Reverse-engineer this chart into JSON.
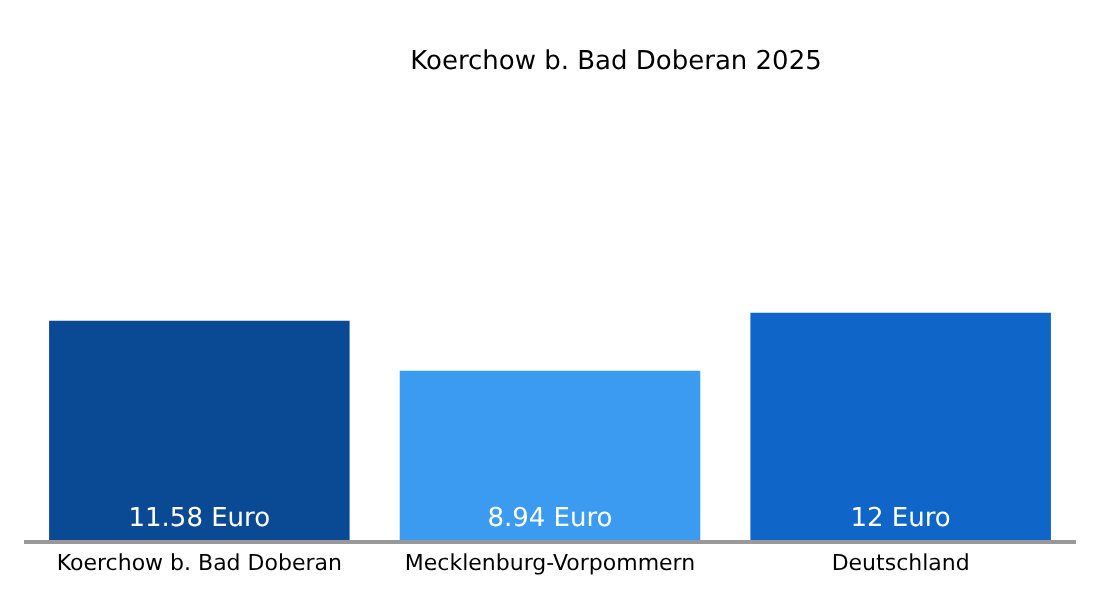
{
  "chart_data": {
    "type": "bar",
    "title": "Koerchow b. Bad Doberan 2025",
    "categories": [
      "Koerchow b. Bad Doberan",
      "Mecklenburg-Vorpommern",
      "Deutschland"
    ],
    "values": [
      11.58,
      8.94,
      12
    ],
    "colors": [
      "#0a4a94",
      "#3a9bf0",
      "#0f66c8"
    ],
    "value_labels": [
      "11.58 Euro",
      "8.94 Euro",
      "12 Euro"
    ]
  }
}
